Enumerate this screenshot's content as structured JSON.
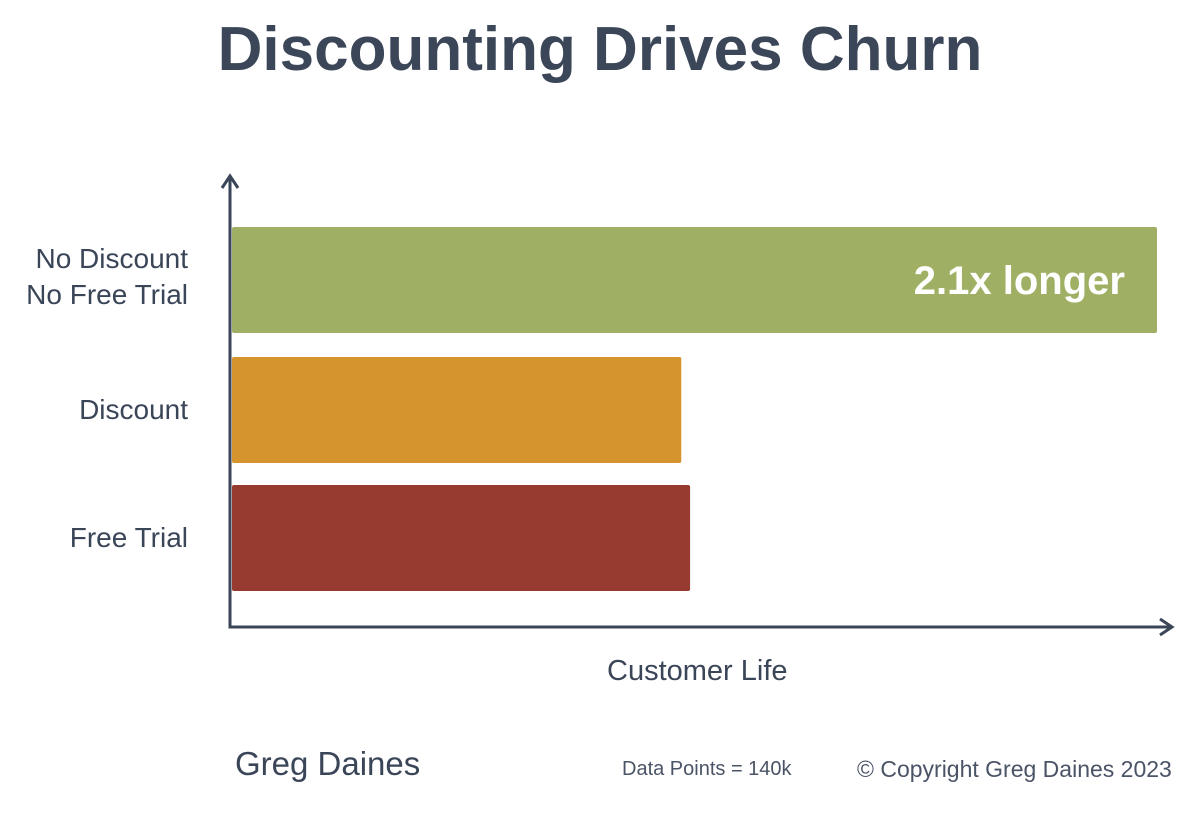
{
  "chart_data": {
    "type": "bar",
    "orientation": "horizontal",
    "title": "Discounting Drives Churn",
    "xlabel": "Customer Life",
    "ylabel": "",
    "categories": [
      "No Discount\nNo Free Trial",
      "Discount",
      "Free Trial"
    ],
    "values": [
      2.1,
      1.02,
      1.04
    ],
    "xlim": [
      0,
      2.1
    ],
    "colors": [
      "#9fb064",
      "#d6942e",
      "#973b30"
    ],
    "annotations": [
      {
        "category": "No Discount\nNo Free Trial",
        "text": "2.1x longer",
        "color": "#ffffff"
      }
    ],
    "grid": false,
    "axis_arrows": true
  },
  "footer": {
    "author": "Greg Daines",
    "data_points": "Data Points = 140k",
    "copyright": "© Copyright Greg Daines 2023"
  }
}
